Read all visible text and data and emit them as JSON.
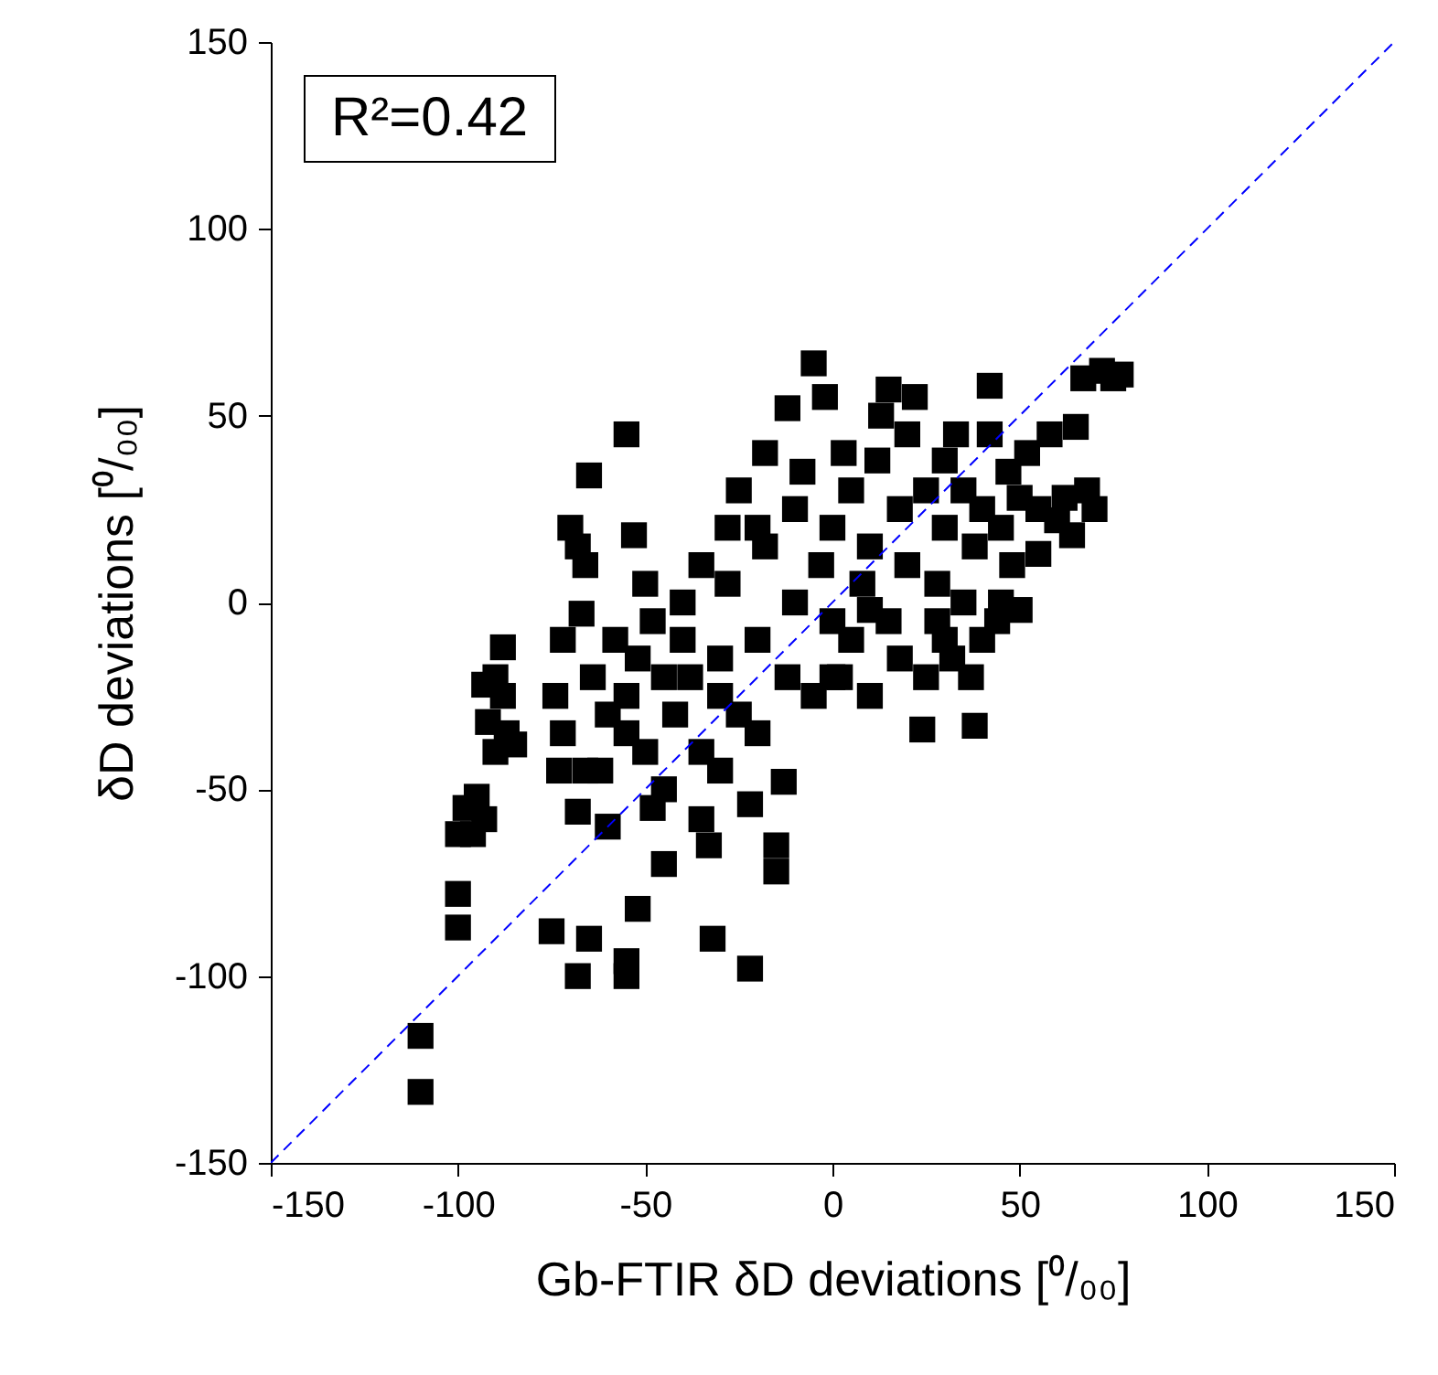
{
  "chart_data": {
    "type": "scatter",
    "xlabel": "Gb-FTIR δD deviations [⁰/₀₀]",
    "ylabel": "δD deviations [⁰/₀₀]",
    "annotations": [
      "R²=0.42"
    ],
    "xlim": [
      -150,
      150
    ],
    "ylim": [
      -150,
      150
    ],
    "xticks": [
      -150,
      -100,
      -50,
      0,
      50,
      100,
      150
    ],
    "yticks": [
      -150,
      -100,
      -50,
      0,
      50,
      100,
      150
    ],
    "grid": false,
    "series": [
      {
        "color": "#000000",
        "marker": "square",
        "x": [
          -110,
          -110,
          -100,
          -100,
          -100,
          -98,
          -95,
          -93,
          -96,
          -92,
          -90,
          -88,
          -90,
          -87,
          -85,
          -93,
          -88,
          -75,
          -73,
          -72,
          -74,
          -72,
          -70,
          -68,
          -66,
          -67,
          -66,
          -68,
          -65,
          -68,
          -60,
          -62,
          -64,
          -65,
          -60,
          -55,
          -55,
          -52,
          -55,
          -58,
          -55,
          -55,
          -52,
          -50,
          -53,
          -50,
          -48,
          -45,
          -45,
          -42,
          -40,
          -40,
          -38,
          -35,
          -35,
          -33,
          -32,
          -30,
          -30,
          -28,
          -28,
          -25,
          -25,
          -22,
          -22,
          -20,
          -20,
          -18,
          -18,
          -15,
          -15,
          -13,
          -12,
          -12,
          -10,
          -10,
          -8,
          -5,
          -5,
          -3,
          -2,
          0,
          0,
          2,
          3,
          5,
          5,
          8,
          10,
          10,
          12,
          13,
          15,
          15,
          18,
          18,
          20,
          20,
          22,
          24,
          25,
          25,
          28,
          28,
          30,
          30,
          32,
          33,
          35,
          35,
          37,
          38,
          38,
          40,
          40,
          42,
          42,
          44,
          45,
          47,
          48,
          50,
          50,
          52,
          55,
          55,
          58,
          60,
          62,
          64,
          65,
          67,
          68,
          72,
          75,
          77,
          70,
          45,
          30,
          -45,
          -48,
          -35,
          -30,
          -20,
          0,
          10
        ],
        "values": [
          -116,
          -131,
          -87,
          -78,
          -62,
          -55,
          -52,
          -58,
          -62,
          -32,
          -20,
          -12,
          -40,
          -35,
          -38,
          -22,
          -25,
          -88,
          -45,
          -35,
          -25,
          -10,
          20,
          15,
          10,
          -3,
          -45,
          -56,
          -90,
          -100,
          -60,
          -45,
          -20,
          34,
          -30,
          -100,
          -96,
          -82,
          45,
          -10,
          -25,
          -35,
          -15,
          5,
          18,
          -40,
          -55,
          -70,
          -50,
          -30,
          -10,
          0,
          -20,
          -40,
          -58,
          -65,
          -90,
          -45,
          -15,
          5,
          20,
          30,
          -30,
          -54,
          -98,
          -35,
          -10,
          15,
          40,
          -72,
          -65,
          -48,
          52,
          -20,
          0,
          25,
          35,
          64,
          -25,
          10,
          55,
          -5,
          20,
          -20,
          40,
          30,
          -10,
          5,
          15,
          -25,
          38,
          50,
          57,
          -5,
          -15,
          25,
          10,
          45,
          55,
          -34,
          -20,
          30,
          5,
          -5,
          20,
          38,
          -15,
          45,
          0,
          30,
          -20,
          -33,
          15,
          -10,
          25,
          58,
          45,
          -5,
          20,
          35,
          10,
          28,
          -2,
          40,
          25,
          13,
          45,
          22,
          28,
          18,
          47,
          60,
          30,
          62,
          60,
          61,
          25,
          0,
          -10,
          -20,
          -5,
          10,
          -25,
          20,
          -20,
          -2
        ]
      },
      {
        "type": "line",
        "color": "#0000ff",
        "line_style": "dashed",
        "x": [
          -150,
          150
        ],
        "values": [
          -150,
          150
        ]
      }
    ]
  }
}
